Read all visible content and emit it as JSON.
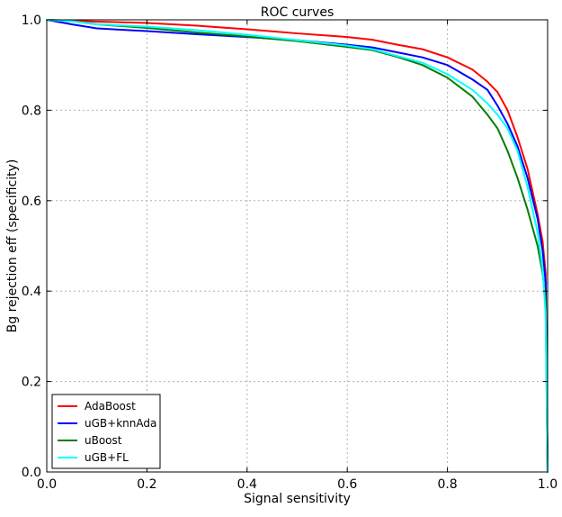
{
  "chart_data": {
    "type": "line",
    "title": "ROC curves",
    "xlabel": "Signal sensitivity",
    "ylabel": "Bg rejection eff (specificity)",
    "xlim": [
      0.0,
      1.0
    ],
    "ylim": [
      0.0,
      1.0
    ],
    "xticks": [
      "0.0",
      "0.2",
      "0.4",
      "0.6",
      "0.8",
      "1.0"
    ],
    "yticks": [
      "0.0",
      "0.2",
      "0.4",
      "0.6",
      "0.8",
      "1.0"
    ],
    "grid": true,
    "legend_position": "lower-left",
    "series": [
      {
        "name": "AdaBoost",
        "color": "#ff0000",
        "points": [
          [
            0,
            1.0
          ],
          [
            0.05,
            0.998
          ],
          [
            0.1,
            0.996
          ],
          [
            0.2,
            0.993
          ],
          [
            0.3,
            0.987
          ],
          [
            0.4,
            0.979
          ],
          [
            0.5,
            0.97
          ],
          [
            0.6,
            0.962
          ],
          [
            0.65,
            0.956
          ],
          [
            0.7,
            0.945
          ],
          [
            0.75,
            0.935
          ],
          [
            0.8,
            0.917
          ],
          [
            0.85,
            0.89
          ],
          [
            0.88,
            0.863
          ],
          [
            0.9,
            0.84
          ],
          [
            0.92,
            0.8
          ],
          [
            0.94,
            0.74
          ],
          [
            0.96,
            0.67
          ],
          [
            0.98,
            0.57
          ],
          [
            0.99,
            0.51
          ],
          [
            0.996,
            0.44
          ],
          [
            1.0,
            0.0
          ]
        ]
      },
      {
        "name": "uGB+knnAda",
        "color": "#0000ff",
        "points": [
          [
            0,
            1.0
          ],
          [
            0.05,
            0.99
          ],
          [
            0.1,
            0.981
          ],
          [
            0.2,
            0.975
          ],
          [
            0.3,
            0.968
          ],
          [
            0.4,
            0.962
          ],
          [
            0.5,
            0.955
          ],
          [
            0.6,
            0.945
          ],
          [
            0.65,
            0.939
          ],
          [
            0.7,
            0.928
          ],
          [
            0.75,
            0.917
          ],
          [
            0.8,
            0.9
          ],
          [
            0.85,
            0.868
          ],
          [
            0.88,
            0.845
          ],
          [
            0.9,
            0.81
          ],
          [
            0.92,
            0.77
          ],
          [
            0.94,
            0.72
          ],
          [
            0.96,
            0.65
          ],
          [
            0.98,
            0.56
          ],
          [
            0.99,
            0.49
          ],
          [
            0.996,
            0.42
          ],
          [
            1.0,
            0.0
          ]
        ]
      },
      {
        "name": "uBoost",
        "color": "#007f00",
        "points": [
          [
            0,
            1.0
          ],
          [
            0.05,
            0.997
          ],
          [
            0.1,
            0.99
          ],
          [
            0.2,
            0.982
          ],
          [
            0.3,
            0.972
          ],
          [
            0.4,
            0.963
          ],
          [
            0.5,
            0.953
          ],
          [
            0.6,
            0.94
          ],
          [
            0.65,
            0.933
          ],
          [
            0.7,
            0.918
          ],
          [
            0.75,
            0.9
          ],
          [
            0.8,
            0.872
          ],
          [
            0.85,
            0.83
          ],
          [
            0.88,
            0.79
          ],
          [
            0.9,
            0.76
          ],
          [
            0.92,
            0.71
          ],
          [
            0.94,
            0.65
          ],
          [
            0.96,
            0.58
          ],
          [
            0.98,
            0.5
          ],
          [
            0.99,
            0.44
          ],
          [
            0.996,
            0.38
          ],
          [
            1.0,
            0.0
          ]
        ]
      },
      {
        "name": "uGB+FL",
        "color": "#00ffff",
        "points": [
          [
            0,
            1.0
          ],
          [
            0.05,
            0.997
          ],
          [
            0.1,
            0.99
          ],
          [
            0.2,
            0.985
          ],
          [
            0.3,
            0.977
          ],
          [
            0.4,
            0.967
          ],
          [
            0.5,
            0.955
          ],
          [
            0.6,
            0.943
          ],
          [
            0.65,
            0.935
          ],
          [
            0.7,
            0.92
          ],
          [
            0.75,
            0.905
          ],
          [
            0.8,
            0.88
          ],
          [
            0.85,
            0.845
          ],
          [
            0.88,
            0.815
          ],
          [
            0.9,
            0.79
          ],
          [
            0.92,
            0.76
          ],
          [
            0.94,
            0.71
          ],
          [
            0.96,
            0.63
          ],
          [
            0.98,
            0.53
          ],
          [
            0.99,
            0.45
          ],
          [
            0.996,
            0.35
          ],
          [
            1.0,
            0.0
          ]
        ]
      }
    ]
  }
}
